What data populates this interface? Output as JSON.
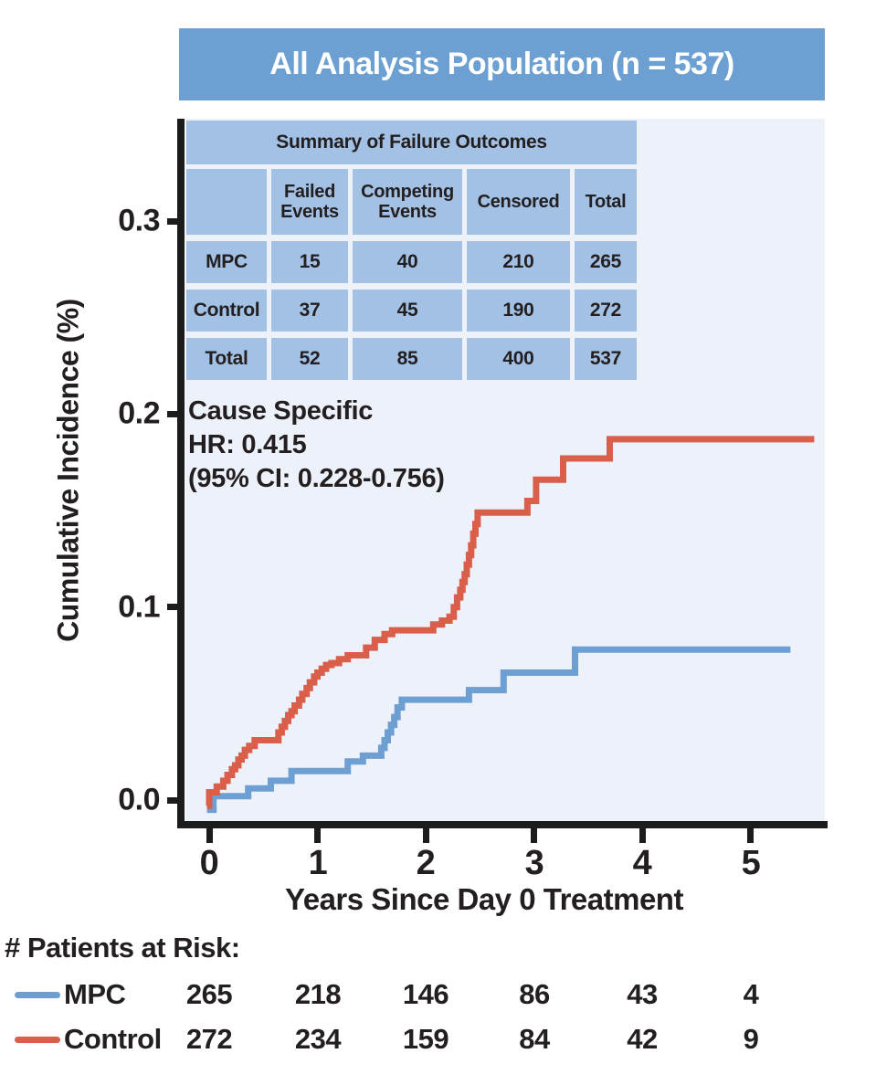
{
  "banner": {
    "title": "All Analysis Population (n = 537)"
  },
  "colors": {
    "banner_blue": "#6ca0d3",
    "table_cell_blue": "#a3c1e4",
    "plot_background": "#edf1f9",
    "mpc_blue": "#6d9fd3",
    "control_red": "#d95f4a",
    "text_dark": "#231f20",
    "axis_black": "#1c1c1c"
  },
  "y_axis": {
    "label": "Cumulative Incidence (%)",
    "ticks": [
      "0.3",
      "0.2",
      "0.1",
      "0.0"
    ]
  },
  "x_axis": {
    "label": "Years Since Day 0 Treatment",
    "ticks": [
      "0",
      "1",
      "2",
      "3",
      "4",
      "5"
    ]
  },
  "summary_table": {
    "title": "Summary of Failure Outcomes",
    "columns": [
      "",
      "Failed Events",
      "Competing Events",
      "Censored",
      "Total"
    ],
    "rows": [
      {
        "label": "MPC",
        "cells": [
          "15",
          "40",
          "210",
          "265"
        ]
      },
      {
        "label": "Control",
        "cells": [
          "37",
          "45",
          "190",
          "272"
        ]
      },
      {
        "label": "Total",
        "cells": [
          "52",
          "85",
          "400",
          "537"
        ]
      }
    ]
  },
  "annotation": {
    "line1": "Cause Specific",
    "line2": "HR: 0.415",
    "line3": "(95% CI: 0.228-0.756)"
  },
  "at_risk": {
    "title": "# Patients at Risk:",
    "rows": [
      {
        "label": "MPC",
        "color": "#6d9fd3",
        "counts": [
          "265",
          "218",
          "146",
          "86",
          "43",
          "4"
        ]
      },
      {
        "label": "Control",
        "color": "#d95f4a",
        "counts": [
          "272",
          "234",
          "159",
          "84",
          "42",
          "9"
        ]
      }
    ]
  },
  "chart_data": {
    "type": "line",
    "subtype": "step-cumulative-incidence",
    "title": "All Analysis Population (n = 537)",
    "xlabel": "Years Since Day 0 Treatment",
    "ylabel": "Cumulative Incidence (%)",
    "xlim": [
      -0.1,
      5.7
    ],
    "ylim": [
      -0.01,
      0.345
    ],
    "xticks": [
      0,
      1,
      2,
      3,
      4,
      5
    ],
    "yticks": [
      0.0,
      0.1,
      0.2,
      0.3
    ],
    "grid": false,
    "legend_position": "bottom-left (patients-at-risk table)",
    "annotation": "Cause Specific HR: 0.415 (95% CI: 0.228-0.756)",
    "series": [
      {
        "name": "MPC",
        "color": "#6d9fd3",
        "steps": [
          [
            -0.02,
            -0.005
          ],
          [
            0.04,
            0.002
          ],
          [
            0.36,
            0.006
          ],
          [
            0.57,
            0.01
          ],
          [
            0.76,
            0.015
          ],
          [
            1.28,
            0.02
          ],
          [
            1.42,
            0.023
          ],
          [
            1.59,
            0.027
          ],
          [
            1.62,
            0.031
          ],
          [
            1.65,
            0.035
          ],
          [
            1.68,
            0.039
          ],
          [
            1.71,
            0.043
          ],
          [
            1.74,
            0.048
          ],
          [
            1.78,
            0.052
          ],
          [
            2.4,
            0.057
          ],
          [
            2.72,
            0.066
          ],
          [
            3.38,
            0.078
          ],
          [
            5.37,
            0.078
          ]
        ]
      },
      {
        "name": "Control",
        "color": "#d95f4a",
        "steps": [
          [
            -0.02,
            -0.003
          ],
          [
            0.0,
            0.004
          ],
          [
            0.07,
            0.007
          ],
          [
            0.13,
            0.01
          ],
          [
            0.17,
            0.013
          ],
          [
            0.21,
            0.016
          ],
          [
            0.24,
            0.018
          ],
          [
            0.27,
            0.021
          ],
          [
            0.3,
            0.023
          ],
          [
            0.33,
            0.026
          ],
          [
            0.37,
            0.028
          ],
          [
            0.42,
            0.031
          ],
          [
            0.64,
            0.035
          ],
          [
            0.67,
            0.038
          ],
          [
            0.7,
            0.041
          ],
          [
            0.73,
            0.044
          ],
          [
            0.76,
            0.046
          ],
          [
            0.79,
            0.049
          ],
          [
            0.83,
            0.052
          ],
          [
            0.86,
            0.055
          ],
          [
            0.9,
            0.058
          ],
          [
            0.93,
            0.061
          ],
          [
            0.97,
            0.064
          ],
          [
            1.0,
            0.066
          ],
          [
            1.04,
            0.068
          ],
          [
            1.08,
            0.07
          ],
          [
            1.13,
            0.071
          ],
          [
            1.2,
            0.073
          ],
          [
            1.28,
            0.075
          ],
          [
            1.45,
            0.079
          ],
          [
            1.53,
            0.083
          ],
          [
            1.62,
            0.086
          ],
          [
            1.69,
            0.088
          ],
          [
            2.07,
            0.091
          ],
          [
            2.15,
            0.093
          ],
          [
            2.22,
            0.095
          ],
          [
            2.26,
            0.1
          ],
          [
            2.29,
            0.105
          ],
          [
            2.32,
            0.109
          ],
          [
            2.34,
            0.113
          ],
          [
            2.36,
            0.117
          ],
          [
            2.38,
            0.122
          ],
          [
            2.4,
            0.127
          ],
          [
            2.42,
            0.132
          ],
          [
            2.44,
            0.138
          ],
          [
            2.46,
            0.143
          ],
          [
            2.48,
            0.149
          ],
          [
            2.94,
            0.155
          ],
          [
            3.02,
            0.166
          ],
          [
            3.27,
            0.177
          ],
          [
            3.7,
            0.187
          ],
          [
            5.59,
            0.187
          ]
        ]
      }
    ]
  }
}
